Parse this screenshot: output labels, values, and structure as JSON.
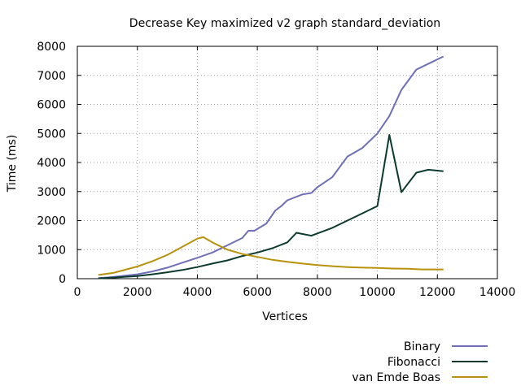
{
  "chart_data": {
    "type": "line",
    "title": "Decrease Key maximized v2 graph standard_deviation",
    "xlabel": "Vertices",
    "ylabel": "Time (ms)",
    "xlim": [
      0,
      14000
    ],
    "ylim": [
      0,
      8000
    ],
    "xticks": [
      0,
      2000,
      4000,
      6000,
      8000,
      10000,
      12000,
      14000
    ],
    "yticks": [
      0,
      1000,
      2000,
      3000,
      4000,
      5000,
      6000,
      7000,
      8000
    ],
    "grid": true,
    "legend_position": "bottom-right",
    "series": [
      {
        "name": "Binary",
        "color": "#6f6fb8",
        "points": [
          [
            700,
            20
          ],
          [
            1200,
            60
          ],
          [
            2000,
            150
          ],
          [
            2500,
            250
          ],
          [
            3000,
            380
          ],
          [
            3500,
            550
          ],
          [
            4000,
            720
          ],
          [
            4500,
            900
          ],
          [
            5000,
            1150
          ],
          [
            5500,
            1400
          ],
          [
            5700,
            1650
          ],
          [
            5900,
            1650
          ],
          [
            6300,
            1900
          ],
          [
            6600,
            2350
          ],
          [
            6800,
            2500
          ],
          [
            7000,
            2700
          ],
          [
            7500,
            2900
          ],
          [
            7800,
            2950
          ],
          [
            8000,
            3150
          ],
          [
            8500,
            3500
          ],
          [
            9000,
            4200
          ],
          [
            9500,
            4500
          ],
          [
            10000,
            5000
          ],
          [
            10400,
            5600
          ],
          [
            10800,
            6500
          ],
          [
            11300,
            7200
          ],
          [
            11800,
            7450
          ],
          [
            12200,
            7650
          ]
        ]
      },
      {
        "name": "Fibonacci",
        "color": "#0d3a2f",
        "points": [
          [
            700,
            10
          ],
          [
            1200,
            40
          ],
          [
            2000,
            90
          ],
          [
            2500,
            150
          ],
          [
            3000,
            220
          ],
          [
            3500,
            300
          ],
          [
            4000,
            400
          ],
          [
            4500,
            520
          ],
          [
            5000,
            630
          ],
          [
            5500,
            780
          ],
          [
            6000,
            900
          ],
          [
            6500,
            1050
          ],
          [
            7000,
            1250
          ],
          [
            7300,
            1580
          ],
          [
            7800,
            1480
          ],
          [
            8500,
            1750
          ],
          [
            9000,
            2000
          ],
          [
            9500,
            2250
          ],
          [
            10000,
            2500
          ],
          [
            10400,
            4950
          ],
          [
            10800,
            2980
          ],
          [
            11300,
            3650
          ],
          [
            11700,
            3750
          ],
          [
            12200,
            3700
          ]
        ]
      },
      {
        "name": "van Emde Boas",
        "color": "#b8920d",
        "points": [
          [
            700,
            130
          ],
          [
            1200,
            200
          ],
          [
            2000,
            420
          ],
          [
            2500,
            600
          ],
          [
            3000,
            820
          ],
          [
            3500,
            1100
          ],
          [
            4000,
            1380
          ],
          [
            4200,
            1430
          ],
          [
            4500,
            1250
          ],
          [
            5000,
            1000
          ],
          [
            5500,
            850
          ],
          [
            6000,
            750
          ],
          [
            6500,
            650
          ],
          [
            7000,
            580
          ],
          [
            7500,
            520
          ],
          [
            8000,
            470
          ],
          [
            8500,
            430
          ],
          [
            9000,
            400
          ],
          [
            9500,
            380
          ],
          [
            10000,
            370
          ],
          [
            10500,
            350
          ],
          [
            11000,
            340
          ],
          [
            11500,
            320
          ],
          [
            12200,
            320
          ]
        ]
      }
    ]
  }
}
